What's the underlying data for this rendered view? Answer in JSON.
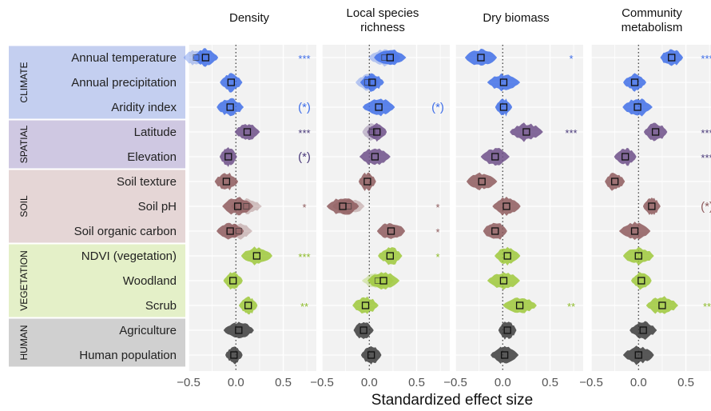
{
  "chart_data": {
    "type": "violin",
    "xlabel": "Standardized effect size",
    "xlim": [
      -0.5,
      0.85
    ],
    "xticks": [
      "−0.5",
      "0.0",
      "0.5"
    ],
    "xtick_values": [
      -0.5,
      0,
      0.5
    ],
    "panels": [
      "Density",
      "Local species\nrichness",
      "Dry biomass",
      "Community\nmetabolism"
    ],
    "groups": [
      {
        "name": "CLIMATE",
        "color": "#c4cff0",
        "mark_color": "#3f6ee8",
        "sig_color": "#3f6ee8",
        "members": [
          0,
          1,
          2
        ]
      },
      {
        "name": "SPATIAL",
        "color": "#cfc8e2",
        "mark_color": "#6d4f88",
        "sig_color": "#4a3a7a",
        "members": [
          3,
          4
        ]
      },
      {
        "name": "SOIL",
        "color": "#e5d6d6",
        "mark_color": "#8e5b5d",
        "sig_color": "#8e5b5d",
        "members": [
          5,
          6,
          7
        ]
      },
      {
        "name": "VEGETATION",
        "color": "#e4f0c8",
        "mark_color": "#9dc83a",
        "sig_color": "#8dbb2a",
        "members": [
          8,
          9,
          10
        ]
      },
      {
        "name": "HUMAN",
        "color": "#d0d0d0",
        "mark_color": "#3c3c3c",
        "sig_color": "#3c3c3c",
        "members": [
          11,
          12
        ]
      }
    ],
    "predictors": [
      "Annual temperature",
      "Annual precipitation",
      "Aridity index",
      "Latitude",
      "Elevation",
      "Soil texture",
      "Soil pH",
      "Soil organic carbon",
      "NDVI (vegetation)",
      "Woodland",
      "Scrub",
      "Agriculture",
      "Human population"
    ],
    "values": [
      [
        -0.32,
        -0.05,
        -0.06,
        0.12,
        -0.08,
        -0.1,
        0.02,
        -0.06,
        0.22,
        -0.03,
        0.13,
        0.03,
        -0.02
      ],
      [
        0.22,
        0.03,
        0.1,
        0.08,
        0.06,
        -0.02,
        -0.28,
        0.23,
        0.22,
        0.15,
        -0.04,
        -0.06,
        0.02
      ],
      [
        -0.23,
        0.01,
        0.01,
        0.25,
        -0.08,
        -0.22,
        0.04,
        -0.08,
        0.05,
        0.01,
        0.18,
        0.05,
        0.02
      ],
      [
        0.35,
        -0.04,
        -0.01,
        0.18,
        -0.14,
        -0.25,
        0.14,
        -0.04,
        0.0,
        0.03,
        0.25,
        0.05,
        0.0
      ]
    ],
    "secondary_values": [
      [
        -0.42,
        null,
        null,
        null,
        null,
        null,
        0.11,
        0.03,
        null,
        null,
        null,
        null,
        null
      ],
      [
        0.16,
        -0.02,
        null,
        0.03,
        null,
        null,
        -0.22,
        null,
        null,
        0.09,
        null,
        null,
        null
      ],
      [
        null,
        null,
        null,
        null,
        null,
        null,
        null,
        null,
        null,
        null,
        null,
        null,
        null
      ],
      [
        null,
        null,
        null,
        null,
        null,
        null,
        null,
        null,
        null,
        null,
        null,
        null,
        null
      ]
    ],
    "significance": [
      [
        "***",
        "",
        "(*)",
        "***",
        "(*)",
        "",
        "*",
        "",
        "***",
        "",
        "**",
        "",
        ""
      ],
      [
        "",
        "",
        "(*)",
        "",
        "",
        "",
        "*",
        "*",
        "*",
        "",
        "",
        "",
        ""
      ],
      [
        "*",
        "",
        "",
        "***",
        "",
        "",
        "",
        "",
        "",
        "",
        "**",
        "",
        ""
      ],
      [
        "***",
        "",
        "",
        "***",
        "***",
        "",
        "(*)",
        "",
        "",
        "",
        "**",
        "",
        ""
      ]
    ]
  }
}
